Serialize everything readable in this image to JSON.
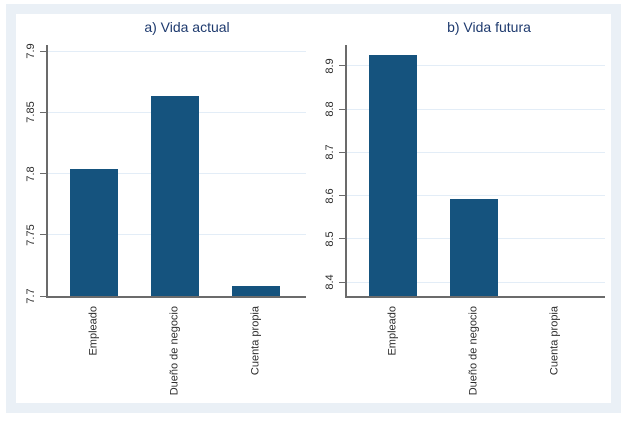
{
  "figure": {
    "frame_color": "#eaf0f6",
    "background": "#ffffff"
  },
  "styles": {
    "bar_color": "#15537e",
    "title_color": "#1e3a6e",
    "tick_label_color": "#2e2e2e",
    "grid_color": "#e3edf7",
    "axis_color": "#6b6b6b"
  },
  "chart_data": [
    {
      "type": "bar",
      "panel": "a",
      "title": "a) Vida actual",
      "categories": [
        "Empleado",
        "Dueño de negocio",
        "Cuenta propia"
      ],
      "values": [
        7.804,
        7.863,
        7.708
      ],
      "ylim": [
        7.7,
        7.905
      ],
      "yticks": [
        7.7,
        7.75,
        7.8,
        7.85,
        7.9
      ],
      "ytick_labels": [
        "7.7",
        "7.75",
        "7.8",
        "7.85",
        "7.9"
      ],
      "xlabel": "",
      "ylabel": "",
      "grid": true,
      "legend": "none"
    },
    {
      "type": "bar",
      "panel": "b",
      "title": "b) Vida futura",
      "categories": [
        "Empleado",
        "Dueño de negocio",
        "Cuenta propia"
      ],
      "values": [
        8.926,
        8.591,
        8.368
      ],
      "ylim": [
        8.368,
        8.948
      ],
      "yticks": [
        8.4,
        8.5,
        8.6,
        8.7,
        8.8,
        8.9
      ],
      "ytick_labels": [
        "8.4",
        "8.5",
        "8.6",
        "8.7",
        "8.8",
        "8.9"
      ],
      "xlabel": "",
      "ylabel": "",
      "grid": true,
      "legend": "none"
    }
  ]
}
